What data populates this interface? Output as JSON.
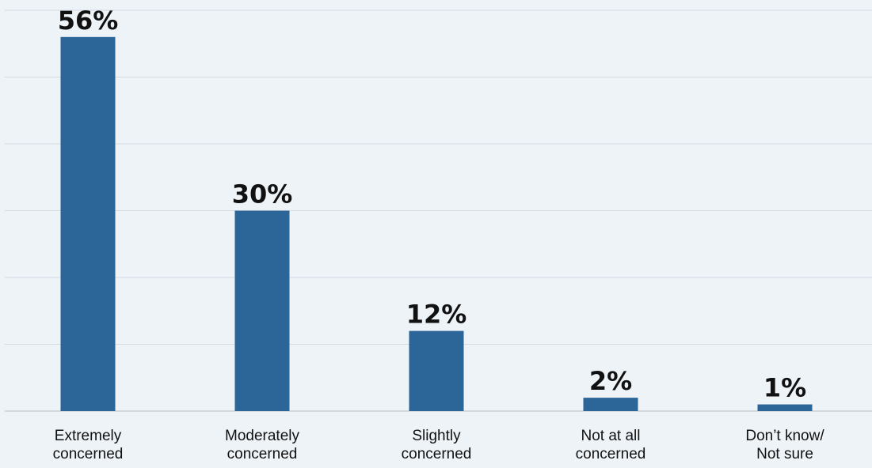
{
  "chart_data": {
    "type": "bar",
    "categories": [
      [
        "Extremely",
        "concerned"
      ],
      [
        "Moderately",
        "concerned"
      ],
      [
        "Slightly",
        "concerned"
      ],
      [
        "Not at all",
        "concerned"
      ],
      [
        "Don’t know/",
        "Not sure"
      ]
    ],
    "values": [
      56,
      30,
      12,
      2,
      1
    ],
    "value_labels": [
      "56%",
      "30%",
      "12%",
      "2%",
      "1%"
    ],
    "ylim": [
      0,
      60
    ],
    "grid": true,
    "colors": {
      "bar": "#2c6699",
      "grid": "#d3dae2",
      "axis": "#c7cfd8",
      "background": "#eef3f8",
      "text": "#111111"
    }
  }
}
